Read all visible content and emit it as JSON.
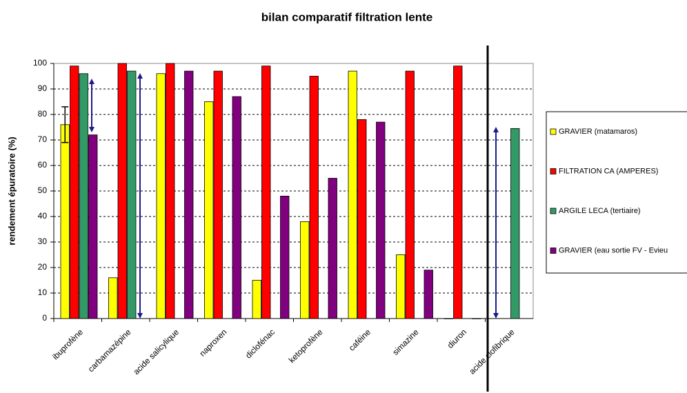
{
  "chart_data": {
    "type": "bar",
    "title": "bilan comparatif filtration lente",
    "y_label": "rendement épuratoire (%)",
    "categories": [
      "ibuprofène",
      "carbamazépine",
      "acide salicylique",
      "naproxen",
      "diclofénac",
      "ketoprofène",
      "caféine",
      "simazine",
      "diuron",
      "acide clofibrique"
    ],
    "series": [
      {
        "name": "GRAVIER (matamaros)",
        "color": "#ffff00",
        "values": [
          76,
          16,
          96,
          85,
          15,
          38,
          97,
          25,
          0,
          null
        ],
        "errors": [
          7,
          null,
          null,
          null,
          null,
          null,
          null,
          null,
          null,
          null
        ]
      },
      {
        "name": "FILTRATION CA (AMPERES)",
        "color": "#ff0000",
        "values": [
          99,
          100,
          100,
          97,
          99,
          95,
          78,
          97,
          99,
          null
        ]
      },
      {
        "name": "ARGILE LECA (tertiaire)",
        "color": "#339966",
        "values": [
          96,
          97,
          null,
          null,
          null,
          null,
          null,
          null,
          null,
          74.5
        ]
      },
      {
        "name": "GRAVIER (eau sortie FV - Evieu",
        "color": "#800080",
        "values": [
          72,
          null,
          97,
          87,
          48,
          55,
          77,
          19,
          0,
          null
        ]
      }
    ],
    "ylim": [
      0,
      100
    ],
    "yticks": [
      0,
      10,
      20,
      30,
      40,
      50,
      60,
      70,
      80,
      90,
      100
    ],
    "grid": true
  }
}
